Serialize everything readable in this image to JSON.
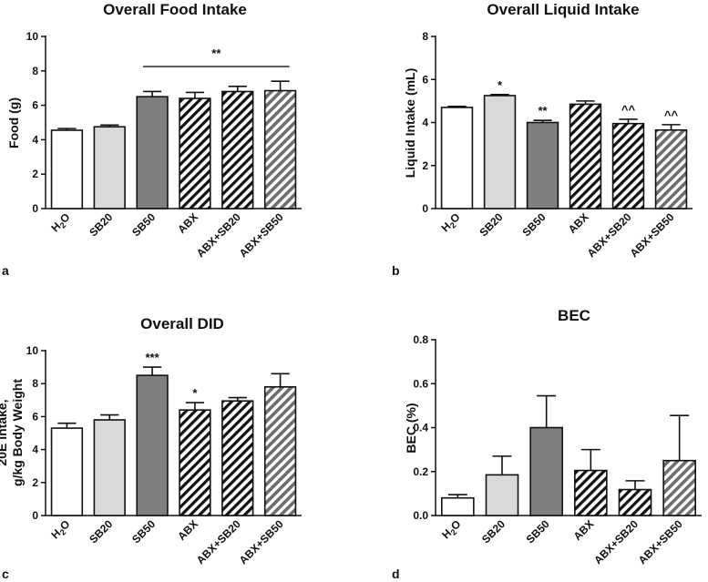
{
  "colors": {
    "white": "#ffffff",
    "light": "#d9d9d9",
    "dark": "#7f7f7f",
    "stroke": "#111111"
  },
  "chart_data": [
    {
      "type": "bar",
      "title": "Overall Food Intake",
      "ylabel": [
        "Food (g)"
      ],
      "panel": "a",
      "ylim": [
        0,
        10
      ],
      "yticks": [
        "0",
        "2",
        "4",
        "6",
        "8",
        "10"
      ],
      "categories": [
        "H2O",
        "SB20",
        "SB50",
        "ABX",
        "ABX+SB20",
        "ABX+SB50"
      ],
      "values": [
        4.55,
        4.75,
        6.5,
        6.4,
        6.8,
        6.85
      ],
      "errors": [
        0.1,
        0.1,
        0.3,
        0.35,
        0.3,
        0.55
      ],
      "styles": [
        "white",
        "light",
        "dark",
        "hatch-white",
        "hatch-white",
        "hatch-dark"
      ],
      "bar_labels": [
        "",
        "",
        "",
        "",
        "",
        ""
      ],
      "bracket": {
        "label": "**",
        "from": 2,
        "to": 5,
        "y": 8.25
      }
    },
    {
      "type": "bar",
      "title": "Overall Liquid Intake",
      "ylabel": [
        "Liquid Intake (mL)"
      ],
      "panel": "b",
      "ylim": [
        0,
        8
      ],
      "yticks": [
        "0",
        "2",
        "4",
        "6",
        "8"
      ],
      "categories": [
        "H2O",
        "SB20",
        "SB50",
        "ABX",
        "ABX+SB20",
        "ABX+SB50"
      ],
      "values": [
        4.7,
        5.25,
        4.0,
        4.85,
        3.95,
        3.65
      ],
      "errors": [
        0.05,
        0.05,
        0.1,
        0.15,
        0.2,
        0.25
      ],
      "styles": [
        "white",
        "light",
        "dark",
        "hatch-white",
        "hatch-white",
        "hatch-dark"
      ],
      "bar_labels": [
        "",
        "*",
        "**",
        "",
        "^^",
        "^^"
      ]
    },
    {
      "type": "bar",
      "title": "Overall DID",
      "ylabel": [
        "20E Intake,",
        "g/kg Body Weight"
      ],
      "panel": "c",
      "ylim": [
        0,
        10
      ],
      "yticks": [
        "0",
        "2",
        "4",
        "6",
        "8",
        "10"
      ],
      "categories": [
        "H2O",
        "SB20",
        "SB50",
        "ABX",
        "ABX+SB20",
        "ABX+SB50"
      ],
      "values": [
        5.3,
        5.8,
        8.5,
        6.4,
        6.95,
        7.8
      ],
      "errors": [
        0.3,
        0.3,
        0.5,
        0.45,
        0.2,
        0.8
      ],
      "styles": [
        "white",
        "light",
        "dark",
        "hatch-white",
        "hatch-white",
        "hatch-dark"
      ],
      "bar_labels": [
        "",
        "",
        "***",
        "*",
        "",
        ""
      ]
    },
    {
      "type": "bar",
      "title": "BEC",
      "ylabel": [
        "BEC (%)"
      ],
      "panel": "d",
      "ylim": [
        0,
        0.8
      ],
      "yticks": [
        "0.0",
        "0.2",
        "0.4",
        "0.6",
        "0.8"
      ],
      "categories": [
        "H2O",
        "SB20",
        "SB50",
        "ABX",
        "ABX+SB20",
        "ABX+SB50"
      ],
      "values": [
        0.08,
        0.185,
        0.4,
        0.205,
        0.118,
        0.25
      ],
      "errors": [
        0.015,
        0.085,
        0.145,
        0.095,
        0.04,
        0.205
      ],
      "styles": [
        "white",
        "light",
        "dark",
        "hatch-white",
        "hatch-white",
        "hatch-dark"
      ],
      "bar_labels": [
        "",
        "",
        "",
        "",
        "",
        ""
      ]
    }
  ]
}
